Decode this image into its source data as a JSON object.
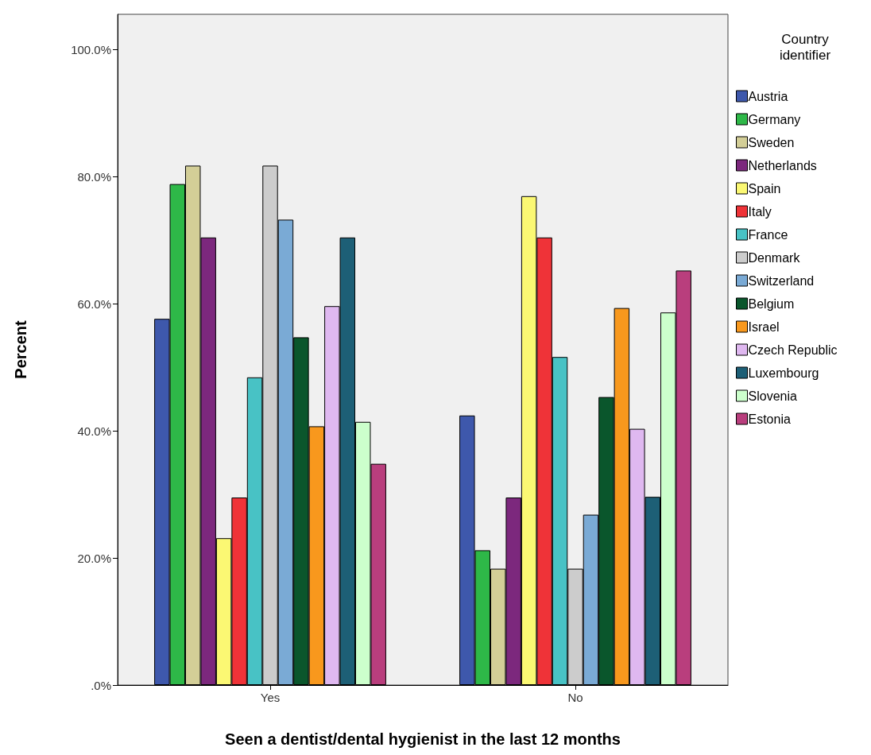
{
  "chart_data": {
    "type": "bar",
    "xlabel": "Seen a dentist/dental hygienist in the last 12 months",
    "ylabel": "Percent",
    "legend_title": "Country identifier",
    "categories": [
      "Yes",
      "No"
    ],
    "series": [
      {
        "name": "Austria",
        "color": "#3e58ac",
        "values": [
          57.6,
          42.4
        ]
      },
      {
        "name": "Germany",
        "color": "#2eb848",
        "values": [
          78.8,
          21.2
        ]
      },
      {
        "name": "Sweden",
        "color": "#d3ce97",
        "values": [
          81.7,
          18.3
        ]
      },
      {
        "name": "Netherlands",
        "color": "#7c287d",
        "values": [
          70.4,
          29.5
        ]
      },
      {
        "name": "Spain",
        "color": "#fbf873",
        "values": [
          23.1,
          76.9
        ]
      },
      {
        "name": "Italy",
        "color": "#ef3338",
        "values": [
          29.5,
          70.4
        ]
      },
      {
        "name": "France",
        "color": "#48c2c5",
        "values": [
          48.4,
          51.6
        ]
      },
      {
        "name": "Denmark",
        "color": "#cccccc",
        "values": [
          81.7,
          18.3
        ]
      },
      {
        "name": "Switzerland",
        "color": "#7aaad5",
        "values": [
          73.2,
          26.8
        ]
      },
      {
        "name": "Belgium",
        "color": "#0a562c",
        "values": [
          54.7,
          45.3
        ]
      },
      {
        "name": "Israel",
        "color": "#f8981d",
        "values": [
          40.7,
          59.3
        ]
      },
      {
        "name": "Czech Republic",
        "color": "#dfb8f0",
        "values": [
          59.6,
          40.3
        ]
      },
      {
        "name": "Luxembourg",
        "color": "#1d5f76",
        "values": [
          70.4,
          29.6
        ]
      },
      {
        "name": "Slovenia",
        "color": "#ccffcc",
        "values": [
          41.4,
          58.6
        ]
      },
      {
        "name": "Estonia",
        "color": "#b93e7d",
        "values": [
          34.8,
          65.2
        ]
      }
    ],
    "ylim": [
      0,
      105.5
    ],
    "yticks": [
      {
        "value": 0,
        "label": ".0%"
      },
      {
        "value": 20,
        "label": "20.0%"
      },
      {
        "value": 40,
        "label": "40.0%"
      },
      {
        "value": 60,
        "label": "60.0%"
      },
      {
        "value": 80,
        "label": "80.0%"
      },
      {
        "value": 100,
        "label": "100.0%"
      }
    ],
    "grid": false,
    "legend": "right"
  }
}
